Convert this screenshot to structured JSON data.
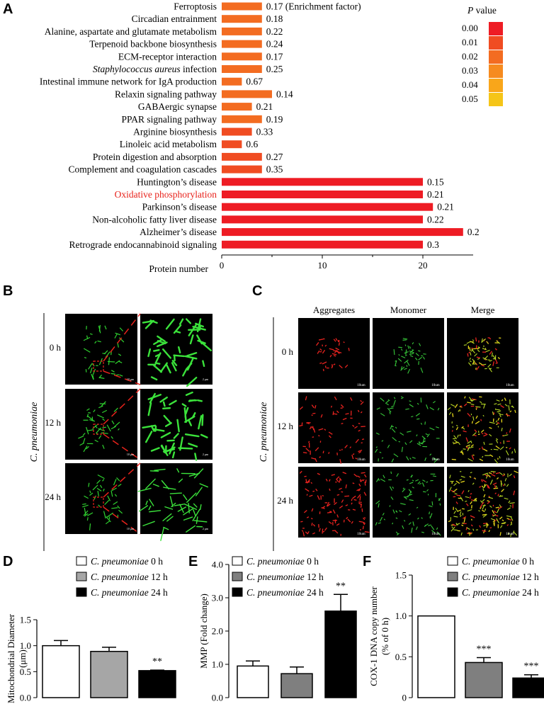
{
  "panels": {
    "A": "A",
    "B": "B",
    "C": "C",
    "D": "D",
    "E": "E",
    "F": "F"
  },
  "chart_data": [
    {
      "id": "A",
      "type": "bar",
      "orientation": "horizontal",
      "categories": [
        "Ferroptosis",
        "Circadian entrainment",
        "Alanine, aspartate and glutamate metabolism",
        "Terpenoid backbone biosynthesis",
        "ECM-receptor interaction",
        "Staphylococcus aureus infection",
        "Intestinal immune network for IgA production",
        "Relaxin signaling pathway",
        "GABAergic synapse",
        "PPAR signaling pathway",
        "Arginine biosynthesis",
        "Linoleic acid metabolism",
        "Protein digestion and absorption",
        "Complement and coagulation cascades",
        "Huntington’s disease",
        "Oxidative phosphorylation",
        "Parkinson’s disease",
        "Non-alcoholic fatty liver disease",
        "Alzheimer’s disease",
        "Retrograde endocannabinoid signaling"
      ],
      "values": [
        4,
        4,
        4,
        4,
        4,
        4,
        2,
        5,
        3,
        4,
        3,
        2,
        4,
        4,
        20,
        20,
        21,
        20,
        24,
        20
      ],
      "bar_labels": [
        "0.17 (Enrichment factor)",
        "0.18",
        "0.22",
        "0.24",
        "0.17",
        "0.25",
        "0.67",
        "0.14",
        "0.21",
        "0.19",
        "0.33",
        "0.6",
        "0.27",
        "0.35",
        "0.15",
        "0.21",
        "0.21",
        "0.22",
        "0.2",
        "0.3"
      ],
      "pvalues": [
        0.02,
        0.02,
        0.02,
        0.02,
        0.02,
        0.02,
        0.02,
        0.02,
        0.02,
        0.02,
        0.01,
        0.01,
        0.01,
        0.01,
        0.0,
        0.0,
        0.0,
        0.0,
        0.0,
        0.0
      ],
      "xlabel": "Protein number",
      "xticks": [
        0,
        10,
        20
      ],
      "xlim": [
        0,
        25
      ],
      "highlight_category": "Oxidative phosphorylation",
      "highlight_color": "#e8221b",
      "legend": {
        "title_italic": "P",
        "title_rest": " value",
        "entries": [
          "0.00",
          "0.01",
          "0.02",
          "0.03",
          "0.04",
          "0.05"
        ],
        "colors": [
          "#ee1c24",
          "#f04c22",
          "#f36c21",
          "#f68b1f",
          "#f9a61a",
          "#f5c518"
        ]
      }
    },
    {
      "id": "D",
      "type": "bar",
      "categories": [
        "0 h",
        "12 h",
        "24 h"
      ],
      "values": [
        1.0,
        0.89,
        0.52
      ],
      "errors": [
        0.1,
        0.08,
        0.01
      ],
      "significance": [
        "",
        "",
        "**"
      ],
      "ylabel": "Mitochondrial Diameter (μm)",
      "ylim": [
        0,
        1.5
      ],
      "yticks": [
        "0.0",
        "0.5",
        "1.0",
        "1.5"
      ],
      "colors": [
        "#ffffff",
        "#a6a6a6",
        "#000000"
      ]
    },
    {
      "id": "E",
      "type": "bar",
      "categories": [
        "0 h",
        "12 h",
        "24 h"
      ],
      "values": [
        0.95,
        0.72,
        2.6
      ],
      "errors": [
        0.15,
        0.2,
        0.5
      ],
      "significance": [
        "",
        "",
        "**"
      ],
      "ylabel": "MMP (Fold change)",
      "ylim": [
        0,
        4
      ],
      "yticks": [
        "0.0",
        "1.0",
        "2.0",
        "3.0",
        "4.0"
      ],
      "colors": [
        "#ffffff",
        "#7f7f7f",
        "#000000"
      ]
    },
    {
      "id": "F",
      "type": "bar",
      "categories": [
        "0 h",
        "12 h",
        "24 h"
      ],
      "values": [
        1.0,
        0.43,
        0.24
      ],
      "errors": [
        0.0,
        0.06,
        0.04
      ],
      "significance": [
        "",
        "***",
        "***"
      ],
      "ylabel": "COX-1 DNA copy number",
      "ylabel2": "(% of 0 h)",
      "ylim": [
        0,
        1.5
      ],
      "yticks": [
        "0",
        "0.5",
        "1.0",
        "1.5"
      ],
      "colors": [
        "#ffffff",
        "#7f7f7f",
        "#000000"
      ]
    }
  ],
  "legend_def": {
    "species": "C. pneumoniae",
    "times": [
      "0 h",
      "12 h",
      "24 h"
    ]
  },
  "panelB": {
    "species": "C. pneumoniae",
    "rows": [
      "0 h",
      "12 h",
      "24 h"
    ],
    "scale_left": "10 μm",
    "scale_right": "2 μm"
  },
  "panelC": {
    "species": "C. pneumoniae",
    "columns": [
      "Aggregates",
      "Monomer",
      "Merge"
    ],
    "rows": [
      "0 h",
      "12 h",
      "24 h"
    ],
    "scale": "10um"
  }
}
